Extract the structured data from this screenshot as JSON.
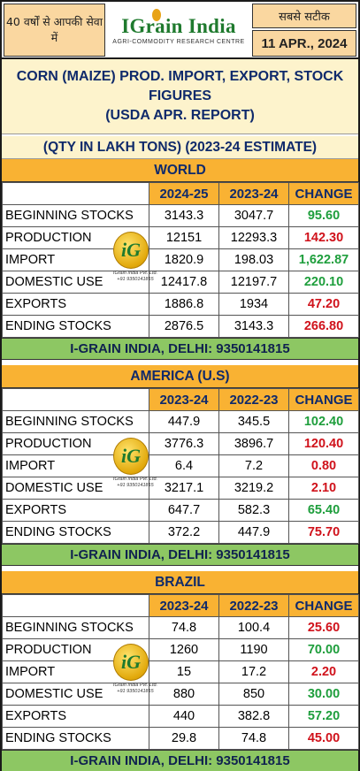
{
  "header": {
    "left_text": "40 वर्षों से आपकी सेवा में",
    "brand": "IGrain India",
    "brand_sub": "AGRI-COMMODITY RESEARCH CENTRE",
    "right_top": "सबसे सटीक",
    "date": "11 APR., 2024"
  },
  "title": {
    "line1": "CORN (MAIZE) PROD. IMPORT, EXPORT, STOCK",
    "line2": "FIGURES",
    "line3": "(USDA APR. REPORT)",
    "qty": "(QTY IN LAKH TONS) (2023-24 ESTIMATE)"
  },
  "footer_text": "I-GRAIN INDIA, DELHI: 9350141815",
  "watermark": {
    "letters": "iG",
    "line1": "IGrain India Pvt. Ltd.",
    "line2": "+91 9350141815"
  },
  "colors": {
    "section_orange": "#f9b233",
    "title_cream": "#fdf3cc",
    "footer_green": "#8dc763",
    "positive": "#1e9e3c",
    "negative": "#d0121b",
    "heading_navy": "#0f2a6b"
  },
  "sections": [
    {
      "name": "WORLD",
      "col1": "2024-25",
      "col2": "2023-24",
      "col3": "CHANGE",
      "rows": [
        {
          "label": "BEGINNING STOCKS",
          "a": "3143.3",
          "b": "3047.7",
          "change": "95.60",
          "dir": "up"
        },
        {
          "label": "PRODUCTION",
          "a": "12151",
          "b": "12293.3",
          "change": "142.30",
          "dir": "down"
        },
        {
          "label": "IMPORT",
          "a": "1820.9",
          "b": "198.03",
          "change": "1,622.87",
          "dir": "up"
        },
        {
          "label": "DOMESTIC USE",
          "a": "12417.8",
          "b": "12197.7",
          "change": "220.10",
          "dir": "up"
        },
        {
          "label": "EXPORTS",
          "a": "1886.8",
          "b": "1934",
          "change": "47.20",
          "dir": "down"
        },
        {
          "label": "ENDING STOCKS",
          "a": "2876.5",
          "b": "3143.3",
          "change": "266.80",
          "dir": "down"
        }
      ]
    },
    {
      "name": "AMERICA (U.S)",
      "col1": "2023-24",
      "col2": "2022-23",
      "col3": "CHANGE",
      "rows": [
        {
          "label": "BEGINNING STOCKS",
          "a": "447.9",
          "b": "345.5",
          "change": "102.40",
          "dir": "up"
        },
        {
          "label": "PRODUCTION",
          "a": "3776.3",
          "b": "3896.7",
          "change": "120.40",
          "dir": "down"
        },
        {
          "label": "IMPORT",
          "a": "6.4",
          "b": "7.2",
          "change": "0.80",
          "dir": "down"
        },
        {
          "label": "DOMESTIC USE",
          "a": "3217.1",
          "b": "3219.2",
          "change": "2.10",
          "dir": "down"
        },
        {
          "label": "EXPORTS",
          "a": "647.7",
          "b": "582.3",
          "change": "65.40",
          "dir": "up"
        },
        {
          "label": "ENDING STOCKS",
          "a": "372.2",
          "b": "447.9",
          "change": "75.70",
          "dir": "down"
        }
      ]
    },
    {
      "name": "BRAZIL",
      "col1": "2023-24",
      "col2": "2022-23",
      "col3": "CHANGE",
      "rows": [
        {
          "label": "BEGINNING STOCKS",
          "a": "74.8",
          "b": "100.4",
          "change": "25.60",
          "dir": "down"
        },
        {
          "label": "PRODUCTION",
          "a": "1260",
          "b": "1190",
          "change": "70.00",
          "dir": "up"
        },
        {
          "label": "IMPORT",
          "a": "15",
          "b": "17.2",
          "change": "2.20",
          "dir": "down"
        },
        {
          "label": "DOMESTIC USE",
          "a": "880",
          "b": "850",
          "change": "30.00",
          "dir": "up"
        },
        {
          "label": "EXPORTS",
          "a": "440",
          "b": "382.8",
          "change": "57.20",
          "dir": "up"
        },
        {
          "label": "ENDING STOCKS",
          "a": "29.8",
          "b": "74.8",
          "change": "45.00",
          "dir": "down"
        }
      ]
    }
  ]
}
